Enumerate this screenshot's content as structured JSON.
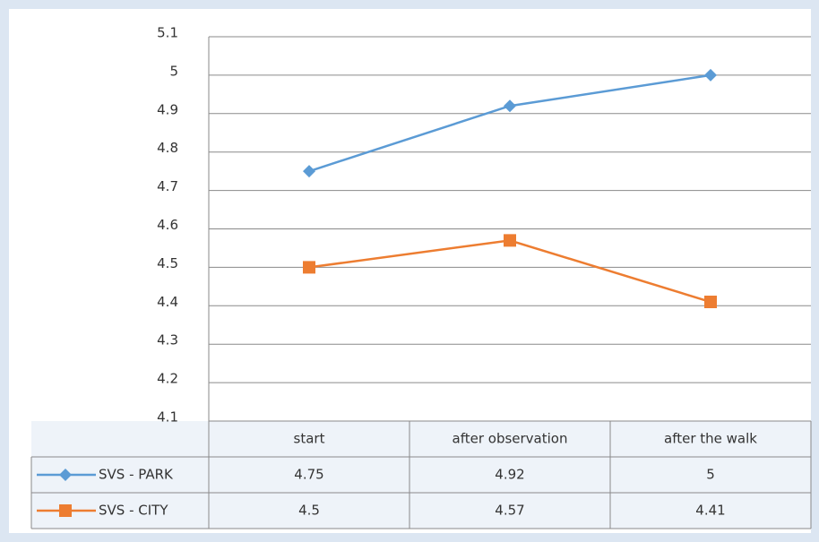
{
  "chart_data": {
    "type": "line",
    "categories": [
      "start",
      "after observation",
      "after the walk"
    ],
    "series": [
      {
        "name": "SVS - PARK",
        "color": "#5b9bd5",
        "marker": "diamond",
        "values": [
          4.75,
          4.92,
          5
        ]
      },
      {
        "name": "SVS - CITY",
        "color": "#ed7d31",
        "marker": "square",
        "values": [
          4.5,
          4.57,
          4.41
        ]
      }
    ],
    "ylim": [
      4.1,
      5.1
    ],
    "yticks": [
      4.1,
      4.2,
      4.3,
      4.4,
      4.5,
      4.6,
      4.7,
      4.8,
      4.9,
      5,
      5.1
    ],
    "grid": true,
    "data_table": true
  }
}
